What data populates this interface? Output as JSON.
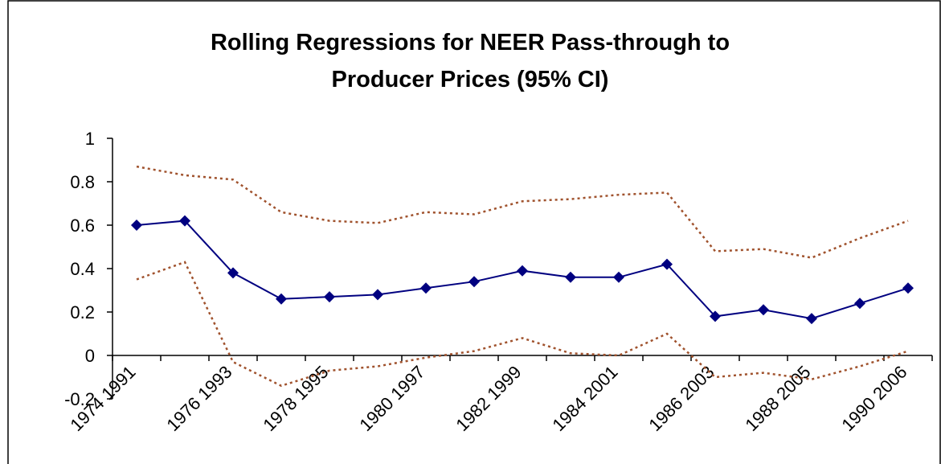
{
  "chart_data": {
    "type": "line",
    "title": "Rolling Regressions for NEER Pass-through to Producer Prices (95% CI)",
    "categories": [
      "1974 1991",
      null,
      "1976 1993",
      null,
      "1978 1995",
      null,
      "1980 1997",
      null,
      "1982 1999",
      null,
      "1984 2001",
      null,
      "1986 2003",
      null,
      "1988 2005",
      null,
      "1990 2006"
    ],
    "series": [
      {
        "color": "#000080",
        "style": "solid",
        "marker": "diamond",
        "values": [
          0.6,
          0.62,
          0.38,
          0.26,
          0.27,
          0.28,
          0.31,
          0.34,
          0.39,
          0.36,
          0.36,
          0.42,
          0.18,
          0.21,
          0.17,
          0.24,
          0.31
        ]
      },
      {
        "color": "#a0522d",
        "style": "dotted",
        "values": [
          0.87,
          0.83,
          0.81,
          0.66,
          0.62,
          0.61,
          0.66,
          0.65,
          0.71,
          0.72,
          0.74,
          0.75,
          0.48,
          0.49,
          0.45,
          0.54,
          0.62
        ]
      },
      {
        "color": "#a0522d",
        "style": "dotted",
        "values": [
          0.35,
          0.43,
          -0.03,
          -0.14,
          -0.07,
          -0.05,
          -0.01,
          0.02,
          0.08,
          0.01,
          0.0,
          0.1,
          -0.1,
          -0.08,
          -0.11,
          -0.05,
          0.02
        ]
      }
    ],
    "ylim": [
      -0.2,
      1
    ],
    "yticks": [
      -0.2,
      0,
      0.2,
      0.4,
      0.6,
      0.8,
      1
    ],
    "grid": false
  }
}
